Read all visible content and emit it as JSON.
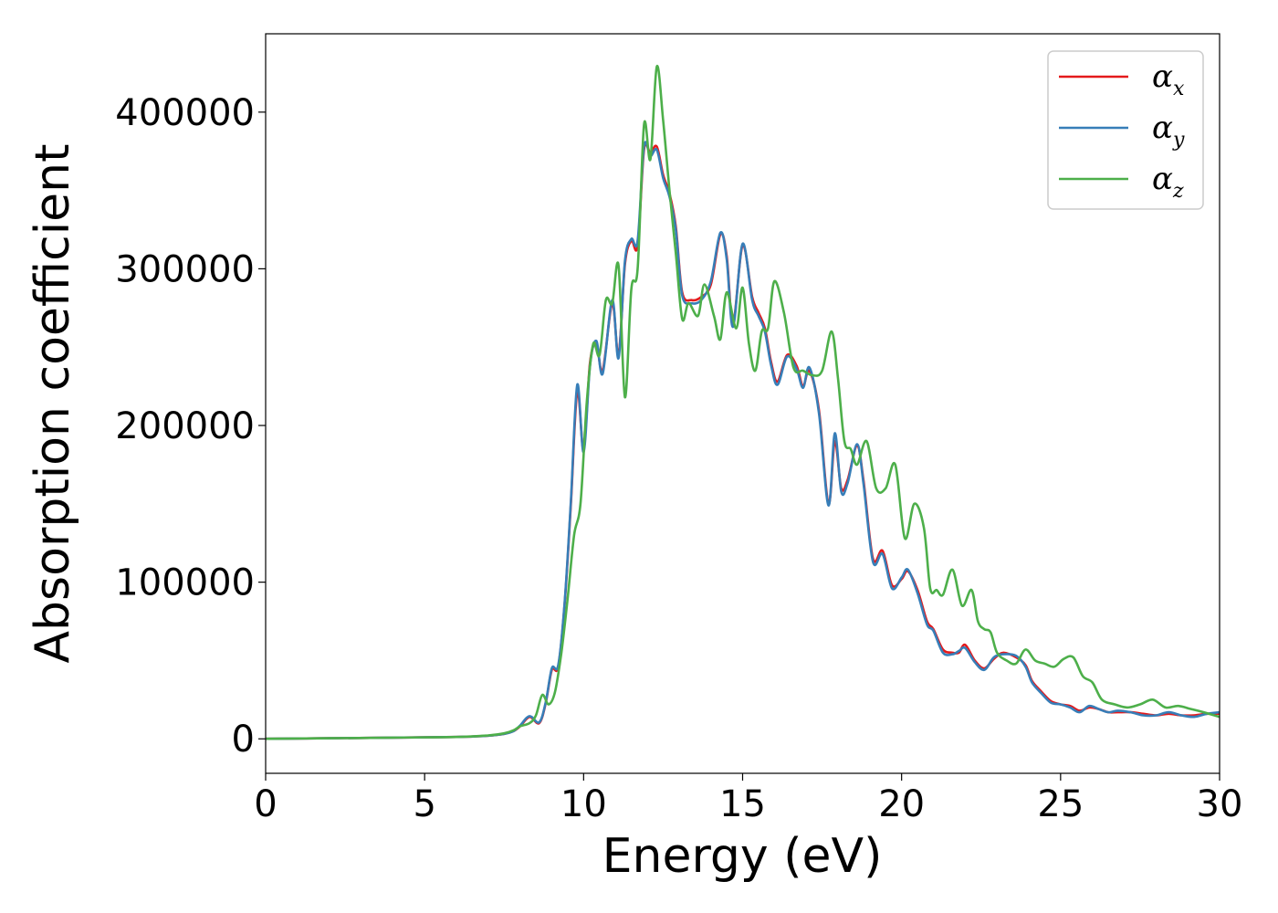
{
  "chart_data": {
    "type": "line",
    "title": "",
    "xlabel": "Energy (eV)",
    "ylabel": "Absorption coefficient",
    "xlim": [
      0,
      30
    ],
    "ylim": [
      -22000,
      450000
    ],
    "xticks": [
      0,
      5,
      10,
      15,
      20,
      25,
      30
    ],
    "xtick_labels": [
      "0",
      "5",
      "10",
      "15",
      "20",
      "25",
      "30"
    ],
    "yticks": [
      0,
      100000,
      200000,
      300000,
      400000
    ],
    "ytick_labels": [
      "0",
      "100000",
      "200000",
      "300000",
      "400000"
    ],
    "grid": false,
    "legend": {
      "placement": "top-right"
    },
    "series": [
      {
        "name": "αx",
        "legend_base": "α",
        "legend_sub": "x",
        "color": "#e41a1c",
        "x": [
          0,
          2,
          4,
          6,
          7,
          7.5,
          7.8,
          8.0,
          8.3,
          8.6,
          8.8,
          9.0,
          9.2,
          9.4,
          9.6,
          9.8,
          10.0,
          10.2,
          10.4,
          10.6,
          10.9,
          11.1,
          11.3,
          11.5,
          11.7,
          11.9,
          12.1,
          12.3,
          12.5,
          12.7,
          12.9,
          13.1,
          13.4,
          13.7,
          14.0,
          14.3,
          14.5,
          14.7,
          15.0,
          15.3,
          15.5,
          15.7,
          15.9,
          16.1,
          16.4,
          16.7,
          16.9,
          17.1,
          17.4,
          17.7,
          17.9,
          18.1,
          18.3,
          18.6,
          18.8,
          19.1,
          19.4,
          19.7,
          20.0,
          20.2,
          20.5,
          20.8,
          21.0,
          21.3,
          21.6,
          21.8,
          22.0,
          22.3,
          22.6,
          22.9,
          23.2,
          23.6,
          23.9,
          24.1,
          24.4,
          24.7,
          25.0,
          25.3,
          25.6,
          25.9,
          26.2,
          26.5,
          26.8,
          27.2,
          27.6,
          28.0,
          28.4,
          28.8,
          29.2,
          29.6,
          30.0
        ],
        "values": [
          0,
          400,
          800,
          1200,
          2000,
          3200,
          5000,
          8000,
          14000,
          10000,
          22000,
          44000,
          46000,
          85000,
          150000,
          222000,
          185000,
          240000,
          252000,
          235000,
          278000,
          245000,
          303000,
          318000,
          315000,
          376000,
          374000,
          378000,
          360000,
          348000,
          327000,
          285000,
          280000,
          282000,
          290000,
          322000,
          308000,
          265000,
          315000,
          282000,
          272000,
          262000,
          240000,
          228000,
          245000,
          238000,
          225000,
          235000,
          210000,
          150000,
          190000,
          160000,
          165000,
          187000,
          165000,
          115000,
          120000,
          98000,
          102000,
          107000,
          95000,
          75000,
          70000,
          57000,
          55000,
          55000,
          60000,
          50000,
          45000,
          51000,
          55000,
          52000,
          47000,
          37000,
          30000,
          24000,
          22000,
          21000,
          18000,
          20000,
          19000,
          17000,
          17000,
          17000,
          16000,
          15000,
          16000,
          15000,
          15000,
          16000,
          16000
        ]
      },
      {
        "name": "αy",
        "legend_base": "α",
        "legend_sub": "y",
        "color": "#377eb8",
        "x": [
          0,
          2,
          4,
          6,
          7,
          7.5,
          7.8,
          8.0,
          8.3,
          8.6,
          8.8,
          9.0,
          9.2,
          9.4,
          9.6,
          9.8,
          10.0,
          10.2,
          10.4,
          10.6,
          10.9,
          11.1,
          11.3,
          11.5,
          11.7,
          11.9,
          12.1,
          12.3,
          12.5,
          12.7,
          12.9,
          13.1,
          13.4,
          13.7,
          14.0,
          14.3,
          14.5,
          14.7,
          15.0,
          15.3,
          15.5,
          15.7,
          15.9,
          16.1,
          16.4,
          16.7,
          16.9,
          17.1,
          17.4,
          17.7,
          17.9,
          18.1,
          18.3,
          18.6,
          18.8,
          19.1,
          19.4,
          19.7,
          20.0,
          20.2,
          20.5,
          20.8,
          21.0,
          21.3,
          21.6,
          21.8,
          22.0,
          22.3,
          22.6,
          22.9,
          23.2,
          23.6,
          23.9,
          24.1,
          24.4,
          24.7,
          25.0,
          25.3,
          25.6,
          25.9,
          26.2,
          26.5,
          26.8,
          27.2,
          27.6,
          28.0,
          28.4,
          28.8,
          29.2,
          29.6,
          30.0
        ],
        "values": [
          0,
          400,
          800,
          1200,
          2000,
          3200,
          5000,
          8500,
          14500,
          10500,
          22500,
          45000,
          47000,
          86000,
          152000,
          226000,
          183000,
          238000,
          254000,
          233000,
          280000,
          243000,
          305000,
          319000,
          318000,
          378000,
          372000,
          376000,
          358000,
          346000,
          325000,
          283000,
          278000,
          280000,
          292000,
          323000,
          306000,
          263000,
          316000,
          280000,
          270000,
          260000,
          238000,
          226000,
          244000,
          236000,
          224000,
          237000,
          208000,
          149000,
          195000,
          158000,
          163000,
          188000,
          163000,
          113000,
          118000,
          96000,
          103000,
          108000,
          93000,
          73000,
          69000,
          55000,
          54000,
          56000,
          58000,
          49000,
          44000,
          52000,
          54000,
          53000,
          46000,
          36000,
          29000,
          23000,
          22000,
          20000,
          17000,
          21000,
          19000,
          17000,
          18000,
          17000,
          15000,
          15000,
          17000,
          15000,
          14000,
          16000,
          17000
        ]
      },
      {
        "name": "αz",
        "legend_base": "α",
        "legend_sub": "z",
        "color": "#4daf4a",
        "x": [
          0,
          2,
          4,
          6,
          7,
          7.5,
          7.8,
          8.0,
          8.3,
          8.5,
          8.7,
          8.9,
          9.1,
          9.3,
          9.5,
          9.7,
          9.9,
          10.1,
          10.3,
          10.5,
          10.7,
          10.9,
          11.1,
          11.3,
          11.5,
          11.7,
          11.9,
          12.1,
          12.3,
          12.5,
          12.7,
          12.9,
          13.1,
          13.3,
          13.6,
          13.8,
          14.1,
          14.3,
          14.5,
          14.8,
          15.0,
          15.2,
          15.4,
          15.6,
          15.8,
          16.0,
          16.3,
          16.6,
          16.9,
          17.2,
          17.5,
          17.8,
          18.0,
          18.2,
          18.4,
          18.6,
          18.9,
          19.2,
          19.5,
          19.8,
          20.1,
          20.4,
          20.7,
          20.9,
          21.1,
          21.3,
          21.6,
          21.9,
          22.2,
          22.4,
          22.6,
          22.8,
          23.0,
          23.3,
          23.6,
          23.9,
          24.2,
          24.5,
          24.8,
          25.1,
          25.4,
          25.7,
          26.0,
          26.3,
          26.7,
          27.1,
          27.5,
          27.9,
          28.3,
          28.7,
          29.1,
          29.5,
          30.0
        ],
        "values": [
          0,
          400,
          800,
          1200,
          2200,
          3500,
          5500,
          8000,
          10000,
          15000,
          28000,
          22000,
          30000,
          55000,
          90000,
          130000,
          150000,
          215000,
          252000,
          245000,
          280000,
          278000,
          302000,
          218000,
          287000,
          300000,
          392000,
          370000,
          429000,
          395000,
          350000,
          310000,
          268000,
          278000,
          270000,
          290000,
          270000,
          255000,
          285000,
          262000,
          288000,
          252000,
          235000,
          260000,
          262000,
          292000,
          272000,
          237000,
          235000,
          232000,
          235000,
          260000,
          230000,
          190000,
          185000,
          175000,
          190000,
          160000,
          160000,
          175000,
          128000,
          150000,
          135000,
          96000,
          95000,
          92000,
          108000,
          85000,
          95000,
          75000,
          70000,
          68000,
          55000,
          50000,
          48000,
          57000,
          50000,
          48000,
          46000,
          51000,
          52000,
          40000,
          36000,
          25000,
          22000,
          20000,
          22000,
          25000,
          20000,
          21000,
          19000,
          17000,
          14000
        ]
      }
    ]
  }
}
